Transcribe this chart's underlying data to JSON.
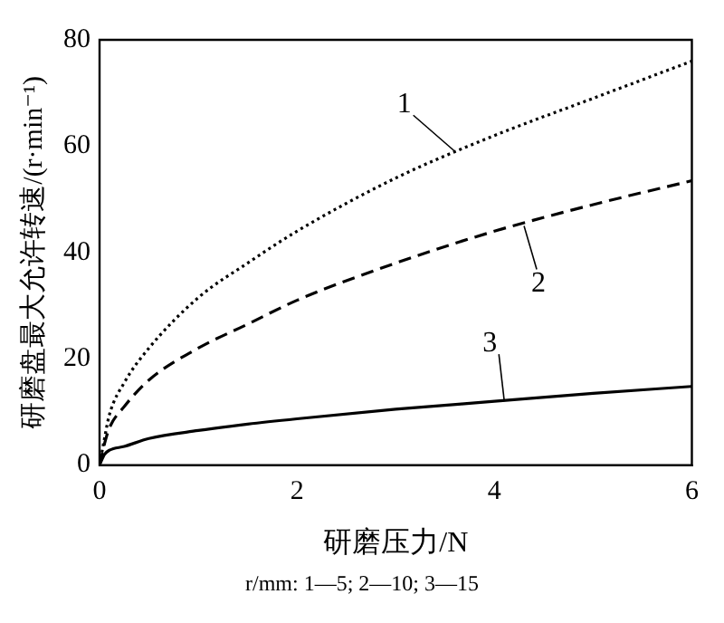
{
  "chart_data": {
    "type": "line",
    "xlabel": "研磨压力/N",
    "ylabel": "研磨盘最大允许转速/(r·min⁻¹)",
    "xlim": [
      0,
      6
    ],
    "ylim": [
      0,
      80
    ],
    "xticks": [
      0,
      2,
      4,
      6
    ],
    "yticks": [
      0,
      20,
      40,
      60,
      80
    ],
    "grid": false,
    "legend": false,
    "marker": "none",
    "x": [
      0,
      0.05,
      0.1,
      0.25,
      0.5,
      1,
      1.5,
      2,
      3,
      4,
      5,
      6
    ],
    "series": [
      {
        "color": "#000000",
        "line_style": "dotted",
        "values": [
          0,
          5,
          9.5,
          15.5,
          22,
          31.5,
          38,
          44,
          54,
          62,
          69,
          76
        ]
      },
      {
        "color": "#000000",
        "line_style": "dashed",
        "values": [
          0,
          4,
          7,
          11,
          16,
          22,
          26.5,
          31,
          38,
          44,
          49,
          53.5
        ]
      },
      {
        "color": "#000000",
        "line_style": "solid",
        "values": [
          0,
          2,
          2.8,
          3.5,
          5,
          6.5,
          7.7,
          8.7,
          10.5,
          12,
          13.5,
          14.8
        ]
      }
    ],
    "annotations": [
      {
        "text": "1",
        "x": 3.6,
        "y": 59
      },
      {
        "text": "2",
        "x": 4.3,
        "y": 45
      },
      {
        "text": "3",
        "x": 4.1,
        "y": 12
      },
      "r/mm: 1—5; 2—10; 3—15"
    ]
  }
}
